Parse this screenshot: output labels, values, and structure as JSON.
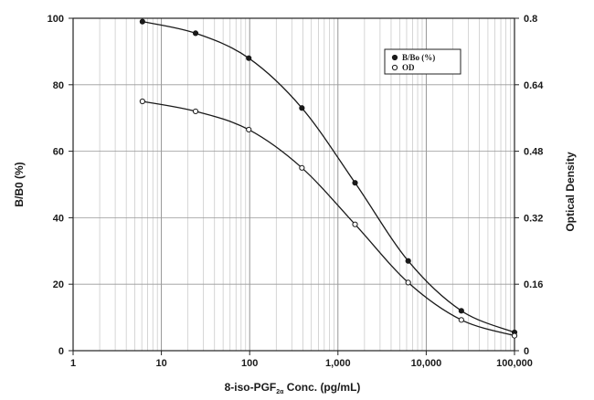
{
  "chart_data": {
    "type": "line",
    "x_scale": "log",
    "x_tick_labels": [
      "1",
      "10",
      "100",
      "1,000",
      "10,000",
      "100,000"
    ],
    "xlim": [
      1,
      100000
    ],
    "xlabel": {
      "prefix": "8-iso-PGF",
      "subscript": "2α",
      "suffix": " Conc. (pg/mL)"
    },
    "ylabel_left": "B/B0 (%)",
    "ylim_left": [
      0,
      100
    ],
    "y_ticks_left": [
      "0",
      "20",
      "40",
      "60",
      "80",
      "100"
    ],
    "ylabel_right": "Optical Density",
    "ylim_right": [
      0,
      0.8
    ],
    "y_ticks_right": [
      "0",
      "0.16",
      "0.32",
      "0.48",
      "0.64",
      "0.8"
    ],
    "grid": true,
    "legend_position": "top-right",
    "series": [
      {
        "name": "B/Bo (%)",
        "axis": "left",
        "marker": "filled",
        "x": [
          6.1,
          24.4,
          97.7,
          390.6,
          1562.5,
          6250,
          25000,
          100000
        ],
        "y": [
          99,
          95.5,
          88,
          73,
          50.5,
          27,
          12,
          5.5
        ]
      },
      {
        "name": "OD",
        "axis": "right",
        "marker": "hollow",
        "x": [
          6.1,
          24.4,
          97.7,
          390.6,
          1562.5,
          6250,
          25000,
          100000
        ],
        "y": [
          0.6,
          0.576,
          0.532,
          0.44,
          0.304,
          0.164,
          0.074,
          0.036
        ]
      }
    ]
  }
}
